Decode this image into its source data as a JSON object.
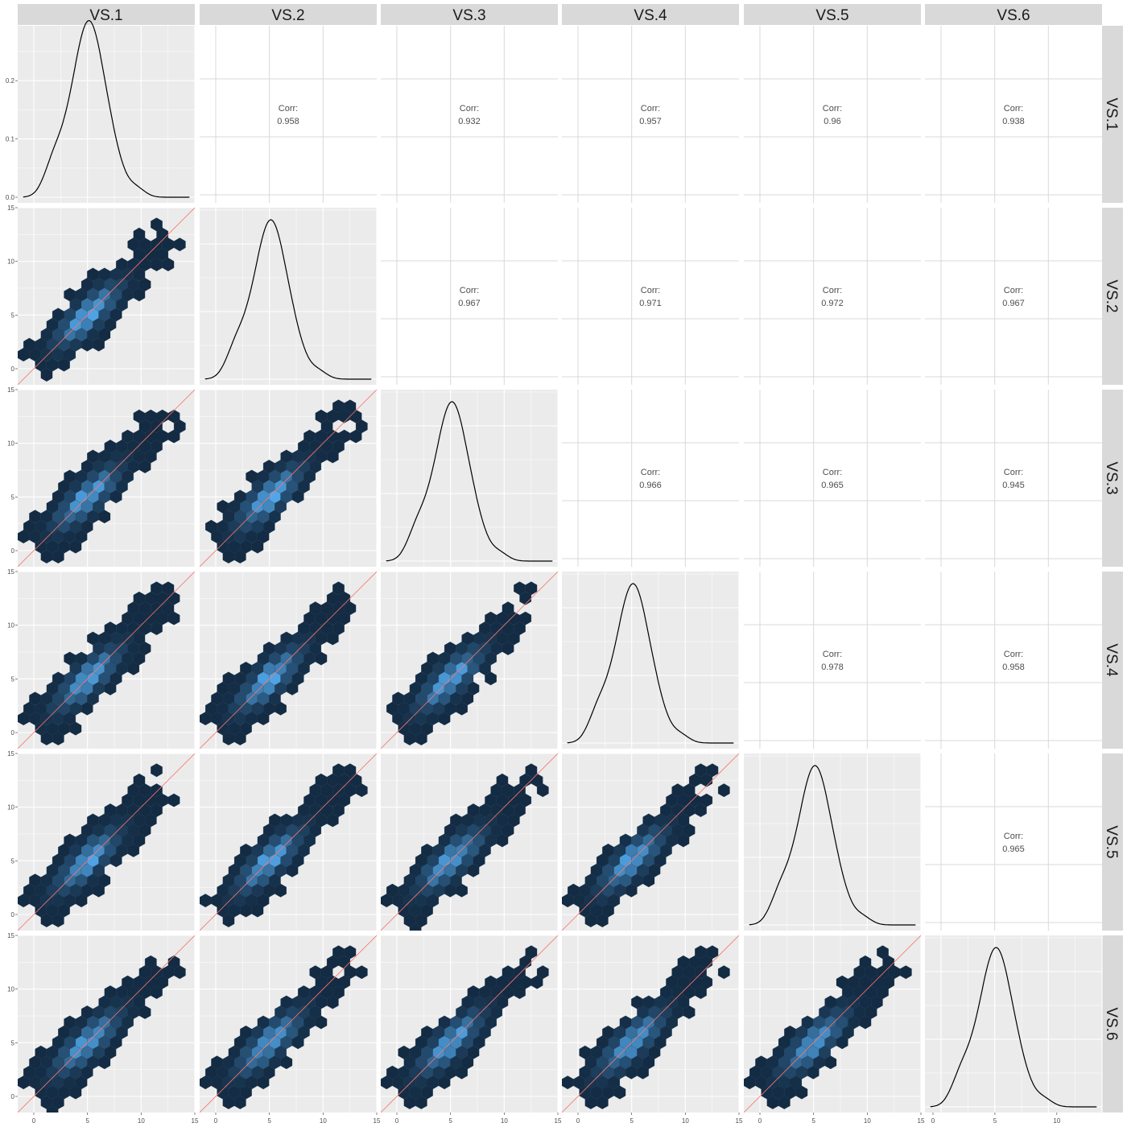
{
  "chart_data": {
    "type": "scatterplot-matrix",
    "variables": [
      "VS.1",
      "VS.2",
      "VS.3",
      "VS.4",
      "VS.5",
      "VS.6"
    ],
    "panel_range": [
      -1.5,
      15
    ],
    "density_peaks": [
      0.27,
      0.21,
      0.21,
      0.21,
      0.21,
      0.21
    ],
    "density_yticks": [
      "0.0",
      "0.1",
      "0.2"
    ],
    "xticks": [
      "0",
      "5",
      "10",
      "15"
    ],
    "xticks_last": [
      "0",
      "5",
      "10"
    ],
    "yticks": [
      "0",
      "5",
      "10",
      "15"
    ],
    "corr_label": "Corr:",
    "correlations": [
      {
        "row": "VS.1",
        "col": "VS.2",
        "value": "0.958"
      },
      {
        "row": "VS.1",
        "col": "VS.3",
        "value": "0.932"
      },
      {
        "row": "VS.1",
        "col": "VS.4",
        "value": "0.957"
      },
      {
        "row": "VS.1",
        "col": "VS.5",
        "value": "0.96"
      },
      {
        "row": "VS.1",
        "col": "VS.6",
        "value": "0.938"
      },
      {
        "row": "VS.2",
        "col": "VS.3",
        "value": "0.967"
      },
      {
        "row": "VS.2",
        "col": "VS.4",
        "value": "0.971"
      },
      {
        "row": "VS.2",
        "col": "VS.5",
        "value": "0.972"
      },
      {
        "row": "VS.2",
        "col": "VS.6",
        "value": "0.967"
      },
      {
        "row": "VS.3",
        "col": "VS.4",
        "value": "0.966"
      },
      {
        "row": "VS.3",
        "col": "VS.5",
        "value": "0.965"
      },
      {
        "row": "VS.3",
        "col": "VS.6",
        "value": "0.945"
      },
      {
        "row": "VS.4",
        "col": "VS.5",
        "value": "0.978"
      },
      {
        "row": "VS.4",
        "col": "VS.6",
        "value": "0.958"
      },
      {
        "row": "VS.5",
        "col": "VS.6",
        "value": "0.965"
      }
    ],
    "identity_line": true,
    "colors": {
      "panel_bg": "#ebebeb",
      "grid": "#ffffff",
      "strip_bg": "#d9d9d9",
      "hex_low": "#132b43",
      "hex_high": "#56b1f7",
      "identity_line": "#f8766d",
      "density_line": "#000000",
      "upper_grid": "#d9d9d9"
    }
  }
}
